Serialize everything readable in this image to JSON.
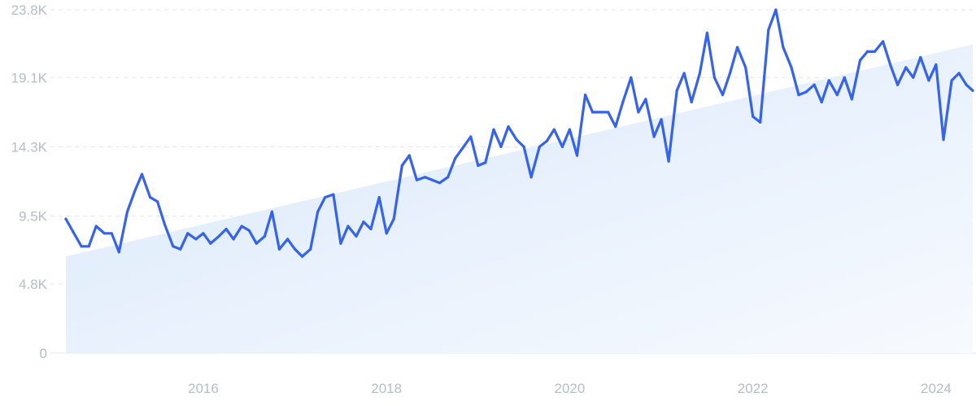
{
  "chart_data": {
    "type": "line",
    "title": "",
    "xlabel": "",
    "ylabel": "",
    "y_ticks": [
      {
        "value": 0,
        "label": "0"
      },
      {
        "value": 4.8,
        "label": "4.8K"
      },
      {
        "value": 9.5,
        "label": "9.5K"
      },
      {
        "value": 14.3,
        "label": "14.3K"
      },
      {
        "value": 19.1,
        "label": "19.1K"
      },
      {
        "value": 23.8,
        "label": "23.8K"
      }
    ],
    "x_ticks": [
      {
        "value": 2016,
        "label": "2016"
      },
      {
        "value": 2018,
        "label": "2018"
      },
      {
        "value": 2020,
        "label": "2020"
      },
      {
        "value": 2022,
        "label": "2022"
      },
      {
        "value": 2024,
        "label": "2024"
      }
    ],
    "xlim": [
      2014.5,
      2024.4
    ],
    "ylim": [
      0,
      23.8
    ],
    "units": "thousands",
    "grid": "horizontal dashed",
    "line_color": "#3563e9",
    "trend_color": "#d9e8fb",
    "series": [
      {
        "x": [
          2014.5,
          2014.58,
          2014.67,
          2014.75,
          2014.83,
          2014.92,
          2015.0,
          2015.08,
          2015.17,
          2015.25,
          2015.33,
          2015.42,
          2015.5,
          2015.58,
          2015.67,
          2015.75,
          2015.83,
          2015.92,
          2016.0,
          2016.08,
          2016.17,
          2016.25,
          2016.33,
          2016.42,
          2016.5,
          2016.58,
          2016.67,
          2016.75,
          2016.83,
          2016.92,
          2017.0,
          2017.08,
          2017.17,
          2017.25,
          2017.33,
          2017.42,
          2017.5,
          2017.58,
          2017.67,
          2017.75,
          2017.83,
          2017.92,
          2018.0,
          2018.08,
          2018.17,
          2018.25,
          2018.33,
          2018.42,
          2018.5,
          2018.58,
          2018.67,
          2018.75,
          2018.83,
          2018.92,
          2019.0,
          2019.08,
          2019.17,
          2019.25,
          2019.33,
          2019.42,
          2019.5,
          2019.58,
          2019.67,
          2019.75,
          2019.83,
          2019.92,
          2020.0,
          2020.08,
          2020.17,
          2020.25,
          2020.33,
          2020.42,
          2020.5,
          2020.58,
          2020.67,
          2020.75,
          2020.83,
          2020.92,
          2021.0,
          2021.08,
          2021.17,
          2021.25,
          2021.33,
          2021.42,
          2021.5,
          2021.58,
          2021.67,
          2021.75,
          2021.83,
          2021.92,
          2022.0,
          2022.08,
          2022.17,
          2022.25,
          2022.33,
          2022.42,
          2022.5,
          2022.58,
          2022.67,
          2022.75,
          2022.83,
          2022.92,
          2023.0,
          2023.08,
          2023.17,
          2023.25,
          2023.33,
          2023.42,
          2023.5,
          2023.58,
          2023.67,
          2023.75,
          2023.83,
          2023.92,
          2024.0,
          2024.08,
          2024.17,
          2024.25,
          2024.33,
          2024.4
        ],
        "values": [
          9.3,
          8.4,
          7.4,
          7.4,
          8.8,
          8.3,
          8.3,
          7.0,
          9.8,
          11.2,
          12.4,
          10.8,
          10.5,
          8.9,
          7.4,
          7.2,
          8.3,
          7.9,
          8.3,
          7.6,
          8.1,
          8.6,
          7.9,
          8.8,
          8.5,
          7.6,
          8.1,
          9.8,
          7.2,
          7.9,
          7.2,
          6.7,
          7.2,
          9.8,
          10.8,
          11.0,
          7.6,
          8.8,
          8.1,
          9.1,
          8.6,
          10.8,
          8.3,
          9.3,
          13.0,
          13.7,
          12.0,
          12.2,
          12.0,
          11.8,
          12.2,
          13.5,
          14.2,
          15.0,
          13.0,
          13.2,
          15.5,
          14.3,
          15.7,
          14.8,
          14.3,
          12.2,
          14.3,
          14.7,
          15.5,
          14.3,
          15.5,
          13.7,
          17.9,
          16.7,
          16.7,
          16.7,
          15.7,
          17.4,
          19.1,
          16.7,
          17.6,
          15.0,
          16.2,
          13.3,
          18.2,
          19.4,
          17.4,
          19.4,
          22.2,
          19.1,
          17.9,
          19.4,
          21.2,
          19.8,
          16.4,
          16.0,
          22.4,
          23.8,
          21.2,
          19.8,
          17.9,
          18.1,
          18.6,
          17.4,
          18.9,
          17.9,
          19.1,
          17.6,
          20.3,
          20.9,
          20.9,
          21.6,
          20.0,
          18.6,
          19.8,
          19.1,
          20.5,
          18.9,
          20.0,
          14.8,
          18.9,
          19.4,
          18.6,
          18.2
        ]
      }
    ],
    "trend": {
      "x": [
        2014.5,
        2024.4
      ],
      "values": [
        6.7,
        21.4
      ]
    }
  }
}
